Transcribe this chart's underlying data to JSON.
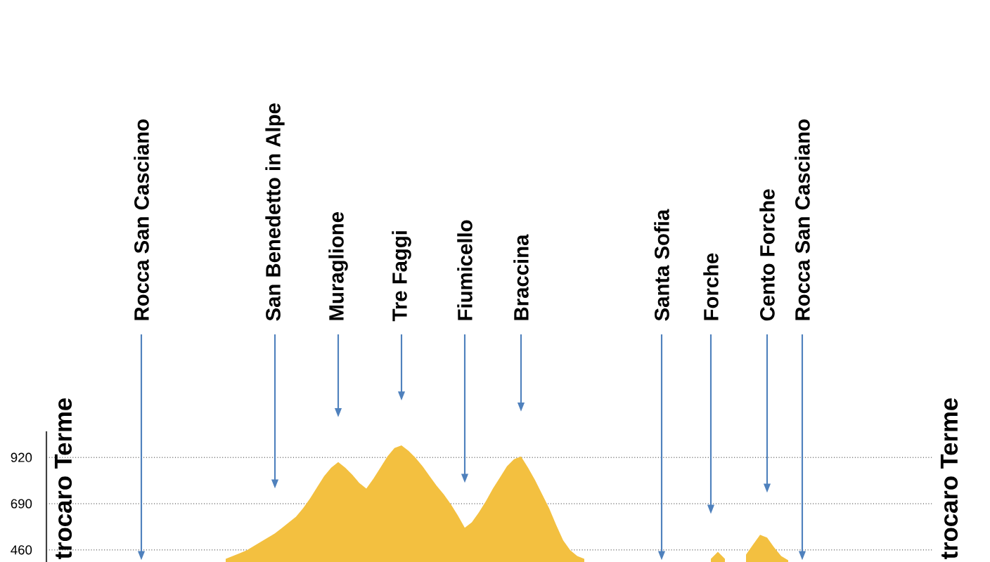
{
  "chart_data": {
    "type": "area",
    "categories": [
      null,
      null,
      null,
      null,
      null,
      null,
      null,
      null,
      null,
      null,
      null,
      null,
      null,
      "Rocca San Casciano",
      null,
      null,
      null,
      null,
      null,
      null,
      null,
      null,
      null,
      null,
      null,
      null,
      null,
      null,
      null,
      null,
      null,
      null,
      "San Benedetto in Alpe",
      null,
      null,
      null,
      null,
      null,
      null,
      null,
      null,
      "Muraglione",
      null,
      null,
      null,
      null,
      null,
      null,
      null,
      null,
      "Tre Faggi",
      null,
      null,
      null,
      null,
      null,
      null,
      null,
      null,
      "Fiumicello",
      null,
      null,
      null,
      null,
      null,
      null,
      null,
      "Braccina",
      null,
      null,
      null,
      null,
      null,
      null,
      null,
      null,
      null,
      null,
      null,
      null,
      null,
      null,
      null,
      null,
      null,
      null,
      null,
      "Santa Sofia",
      null,
      null,
      null,
      null,
      null,
      null,
      "Forche",
      null,
      null,
      null,
      null,
      null,
      null,
      null,
      "Cento Forche",
      null,
      null,
      null,
      null,
      "Rocca San Casciano",
      null,
      null,
      null,
      null,
      null,
      null,
      null,
      null,
      null,
      null,
      null,
      null,
      null,
      null,
      null,
      null,
      null,
      null
    ],
    "values": [
      null,
      null,
      null,
      null,
      null,
      null,
      null,
      null,
      null,
      null,
      null,
      null,
      null,
      null,
      null,
      null,
      null,
      null,
      null,
      null,
      null,
      null,
      null,
      null,
      null,
      416,
      430,
      444,
      458,
      479,
      500,
      521,
      542,
      569,
      597,
      625,
      667,
      716,
      772,
      827,
      869,
      897,
      869,
      834,
      793,
      765,
      814,
      869,
      925,
      967,
      980,
      953,
      918,
      876,
      827,
      779,
      737,
      688,
      632,
      570,
      597,
      646,
      702,
      765,
      820,
      876,
      911,
      925,
      869,
      807,
      737,
      667,
      584,
      507,
      458,
      430,
      416,
      null,
      null,
      null,
      null,
      null,
      null,
      null,
      null,
      null,
      null,
      null,
      null,
      null,
      null,
      null,
      null,
      null,
      416,
      451,
      416,
      null,
      null,
      437,
      486,
      535,
      521,
      472,
      430,
      409,
      null,
      null,
      null,
      null,
      null,
      null,
      null,
      null,
      null,
      null,
      null,
      null,
      null,
      null,
      null,
      null,
      null,
      null,
      null,
      null
    ],
    "color": "#f3c040",
    "ylim": [
      400,
      1050
    ],
    "yticks": [
      460,
      690,
      920
    ],
    "grid": "y",
    "annotations": [
      "trocaro Terme",
      "trocaro Terme"
    ]
  }
}
